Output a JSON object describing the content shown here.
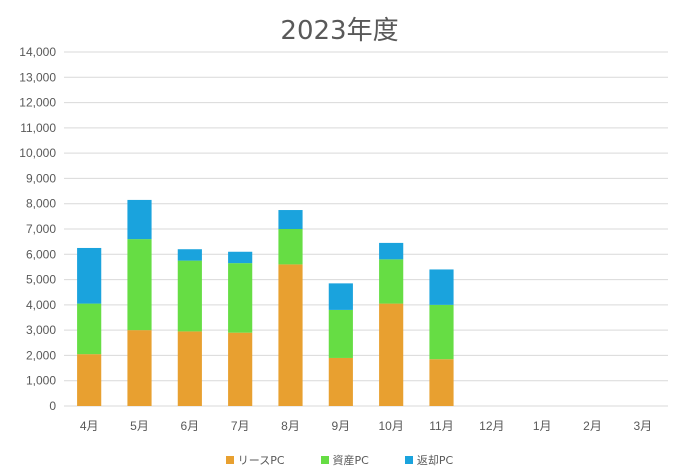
{
  "chart_data": {
    "type": "bar",
    "stacked": true,
    "title": "2023年度",
    "categories": [
      "4月",
      "5月",
      "6月",
      "7月",
      "8月",
      "9月",
      "10月",
      "11月",
      "12月",
      "1月",
      "2月",
      "3月"
    ],
    "series": [
      {
        "name": "リースPC",
        "color": "#E8A030",
        "values": [
          2050,
          3000,
          2950,
          2900,
          5600,
          1900,
          4050,
          1850,
          null,
          null,
          null,
          null
        ]
      },
      {
        "name": "資産PC",
        "color": "#66DD44",
        "values": [
          2000,
          3600,
          2800,
          2750,
          1400,
          1900,
          1750,
          2150,
          null,
          null,
          null,
          null
        ]
      },
      {
        "name": "返却PC",
        "color": "#1AA3DD",
        "values": [
          2200,
          1550,
          450,
          450,
          750,
          1050,
          650,
          1400,
          null,
          null,
          null,
          null
        ]
      }
    ],
    "ylim": [
      0,
      14000
    ],
    "yticks": [
      0,
      1000,
      2000,
      3000,
      4000,
      5000,
      6000,
      7000,
      8000,
      9000,
      10000,
      11000,
      12000,
      13000,
      14000
    ],
    "ytick_labels": [
      "0",
      "1,000",
      "2,000",
      "3,000",
      "4,000",
      "5,000",
      "6,000",
      "7,000",
      "8,000",
      "9,000",
      "10,000",
      "11,000",
      "12,000",
      "13,000",
      "14,000"
    ],
    "grid": true,
    "legend_position": "bottom",
    "gridline_color": "#D9D9D9"
  }
}
